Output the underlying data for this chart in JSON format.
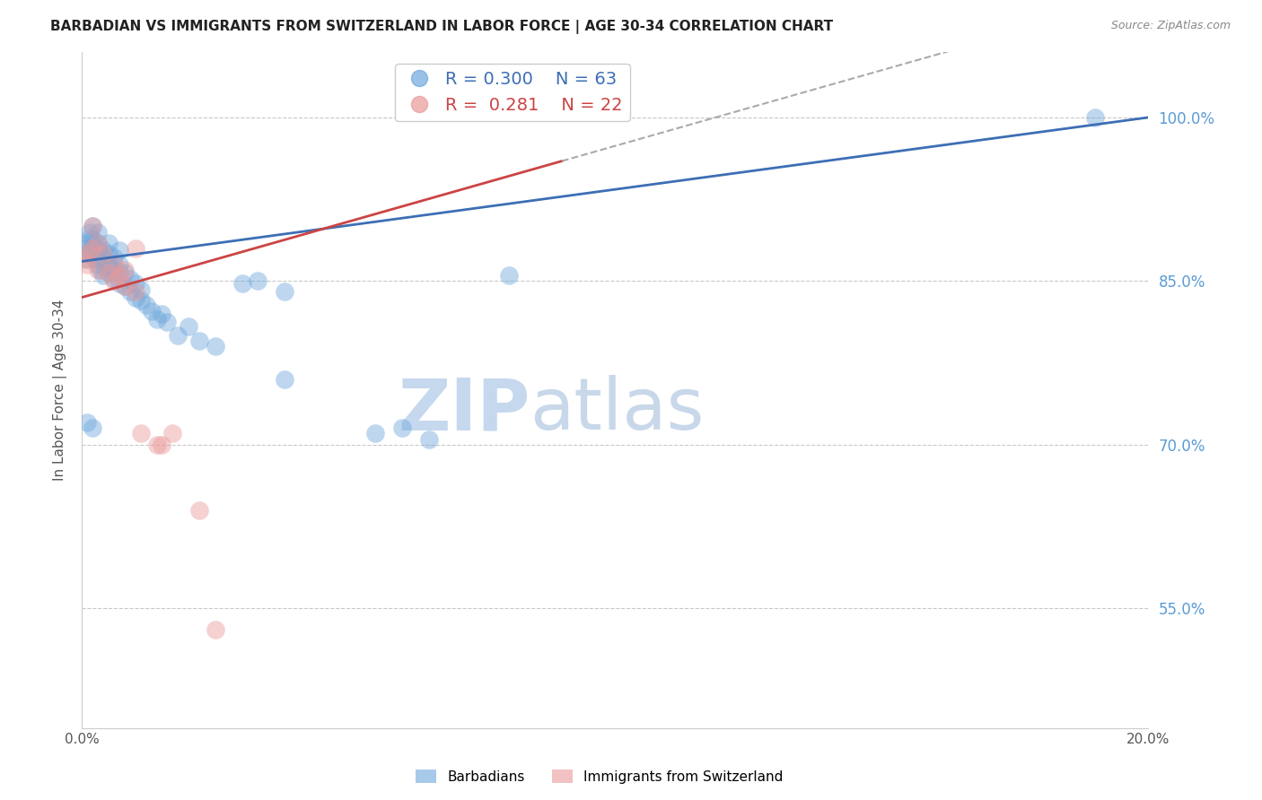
{
  "title": "BARBADIAN VS IMMIGRANTS FROM SWITZERLAND IN LABOR FORCE | AGE 30-34 CORRELATION CHART",
  "source": "Source: ZipAtlas.com",
  "ylabel": "In Labor Force | Age 30-34",
  "xlim": [
    0.0,
    0.2
  ],
  "ylim": [
    0.44,
    1.06
  ],
  "yticks": [
    0.55,
    0.7,
    0.85,
    1.0
  ],
  "ytick_labels": [
    "55.0%",
    "70.0%",
    "85.0%",
    "100.0%"
  ],
  "xticks": [
    0.0,
    0.02,
    0.04,
    0.06,
    0.08,
    0.1,
    0.12,
    0.14,
    0.16,
    0.18,
    0.2
  ],
  "xtick_labels": [
    "0.0%",
    "",
    "",
    "",
    "",
    "",
    "",
    "",
    "",
    "",
    "20.0%"
  ],
  "blue_R": 0.3,
  "blue_N": 63,
  "pink_R": 0.281,
  "pink_N": 22,
  "blue_color": "#6fa8dc",
  "pink_color": "#ea9999",
  "blue_line_color": "#3d6eb5",
  "pink_line_color": "#cc4444",
  "watermark": "ZIPatlas",
  "watermark_color": "#d0e4f5",
  "blue_scatter_x": [
    0.0005,
    0.001,
    0.001,
    0.001,
    0.0015,
    0.0015,
    0.002,
    0.002,
    0.002,
    0.002,
    0.0025,
    0.0025,
    0.003,
    0.003,
    0.003,
    0.003,
    0.003,
    0.0035,
    0.0035,
    0.004,
    0.004,
    0.004,
    0.0045,
    0.005,
    0.005,
    0.005,
    0.005,
    0.0055,
    0.006,
    0.006,
    0.006,
    0.007,
    0.007,
    0.007,
    0.007,
    0.008,
    0.008,
    0.009,
    0.009,
    0.01,
    0.01,
    0.011,
    0.011,
    0.012,
    0.013,
    0.014,
    0.015,
    0.016,
    0.018,
    0.02,
    0.022,
    0.025,
    0.03,
    0.033,
    0.038,
    0.038,
    0.055,
    0.06,
    0.065,
    0.08,
    0.19,
    0.001,
    0.002
  ],
  "blue_scatter_y": [
    0.88,
    0.875,
    0.87,
    0.885,
    0.89,
    0.895,
    0.875,
    0.882,
    0.888,
    0.9,
    0.87,
    0.88,
    0.865,
    0.872,
    0.878,
    0.885,
    0.895,
    0.86,
    0.875,
    0.855,
    0.865,
    0.878,
    0.868,
    0.858,
    0.865,
    0.875,
    0.885,
    0.86,
    0.852,
    0.862,
    0.872,
    0.848,
    0.858,
    0.865,
    0.878,
    0.845,
    0.858,
    0.84,
    0.852,
    0.835,
    0.848,
    0.832,
    0.842,
    0.828,
    0.822,
    0.815,
    0.82,
    0.812,
    0.8,
    0.808,
    0.795,
    0.79,
    0.848,
    0.85,
    0.76,
    0.84,
    0.71,
    0.715,
    0.705,
    0.855,
    1.0,
    0.72,
    0.715
  ],
  "pink_scatter_x": [
    0.0005,
    0.001,
    0.001,
    0.002,
    0.002,
    0.003,
    0.003,
    0.004,
    0.005,
    0.006,
    0.006,
    0.007,
    0.008,
    0.008,
    0.01,
    0.01,
    0.011,
    0.014,
    0.015,
    0.017,
    0.022,
    0.025
  ],
  "pink_scatter_y": [
    0.87,
    0.865,
    0.875,
    0.88,
    0.9,
    0.86,
    0.885,
    0.875,
    0.858,
    0.85,
    0.865,
    0.855,
    0.845,
    0.86,
    0.84,
    0.88,
    0.71,
    0.7,
    0.7,
    0.71,
    0.64,
    0.53
  ],
  "background_color": "#ffffff",
  "grid_color": "#c8c8c8",
  "axis_label_color": "#555555",
  "title_color": "#222222",
  "right_tick_label_color": "#5b9bd5",
  "blue_trend_x0": 0.0,
  "blue_trend_x1": 0.2,
  "blue_trend_y0": 0.868,
  "blue_trend_y1": 1.0,
  "pink_trend_x0": 0.0,
  "pink_trend_x1": 0.09,
  "pink_trend_y0": 0.835,
  "pink_trend_y1": 0.96
}
